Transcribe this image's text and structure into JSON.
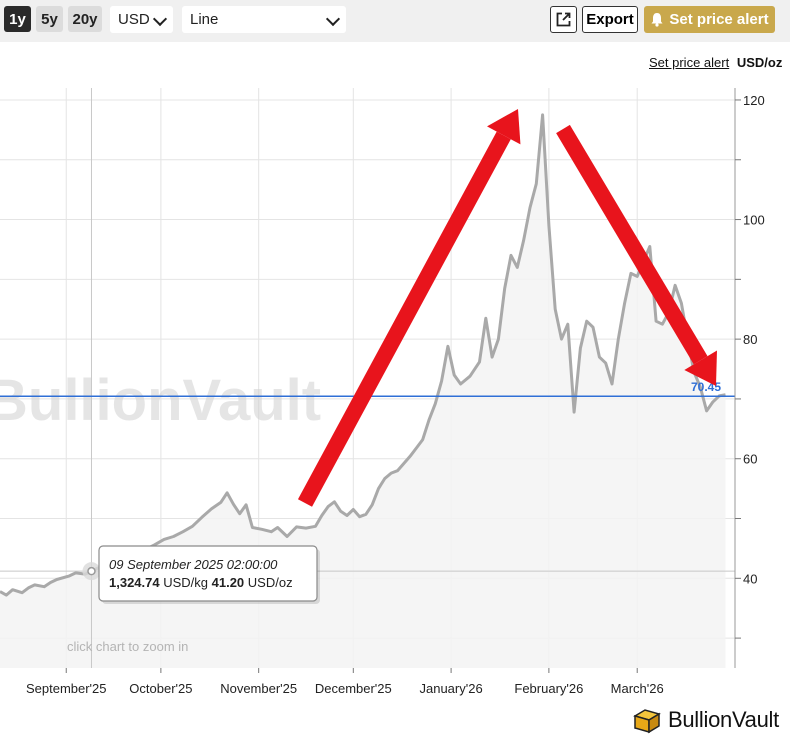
{
  "toolbar": {
    "ranges": [
      {
        "label": "1y",
        "active": true
      },
      {
        "label": "5y",
        "active": false
      },
      {
        "label": "20y",
        "active": false
      }
    ],
    "currency": "USD",
    "chart_style": "Line",
    "export_label": "Export",
    "alert_label": "Set price alert"
  },
  "header": {
    "set_price_alert": "Set price alert",
    "unit": "USD/oz"
  },
  "watermark": "BullionVault",
  "zoom_hint": "click chart to zoom in",
  "current_price_label": "70.45",
  "tooltip": {
    "date": "09 September 2025 02:00:00",
    "kg_value": "1,324.74",
    "kg_unit": "USD/kg",
    "oz_value": "41.20",
    "oz_unit": "USD/oz"
  },
  "logo_text": "BullionVault",
  "colors": {
    "line": "#a9a9a9",
    "current_line": "#2f6fd6",
    "annotation_arrows": "#e8141c",
    "alert_button": "#c9a84c"
  },
  "chart_data": {
    "type": "line",
    "title": "",
    "ylabel": "USD/oz",
    "ylim": [
      25,
      122
    ],
    "yticks": [
      40,
      60,
      80,
      100,
      120
    ],
    "x_range": [
      "2025-08-11",
      "2026-04-01"
    ],
    "xticks": [
      {
        "label": "September'25",
        "date": "2025-09-01"
      },
      {
        "label": "October'25",
        "date": "2025-10-01"
      },
      {
        "label": "November'25",
        "date": "2025-11-01"
      },
      {
        "label": "December'25",
        "date": "2025-12-01"
      },
      {
        "label": "January'26",
        "date": "2026-01-01"
      },
      {
        "label": "February'26",
        "date": "2026-02-01"
      },
      {
        "label": "March'26",
        "date": "2026-03-01"
      }
    ],
    "current_price": 70.45,
    "crosshair_date": "2025-09-09",
    "grid": true,
    "series": [
      {
        "points": [
          [
            "2025-08-11",
            37.8
          ],
          [
            "2025-08-13",
            37.2
          ],
          [
            "2025-08-15",
            38.1
          ],
          [
            "2025-08-18",
            37.6
          ],
          [
            "2025-08-20",
            38.4
          ],
          [
            "2025-08-22",
            38.9
          ],
          [
            "2025-08-25",
            38.6
          ],
          [
            "2025-08-27",
            39.3
          ],
          [
            "2025-08-29",
            39.8
          ],
          [
            "2025-09-02",
            40.4
          ],
          [
            "2025-09-04",
            40.9
          ],
          [
            "2025-09-07",
            40.7
          ],
          [
            "2025-09-09",
            41.2
          ],
          [
            "2025-09-11",
            41.7
          ],
          [
            "2025-09-14",
            42.0
          ],
          [
            "2025-09-17",
            42.6
          ],
          [
            "2025-09-20",
            43.2
          ],
          [
            "2025-09-23",
            44.0
          ],
          [
            "2025-09-26",
            44.8
          ],
          [
            "2025-09-29",
            45.6
          ],
          [
            "2025-10-02",
            46.5
          ],
          [
            "2025-10-05",
            47.0
          ],
          [
            "2025-10-08",
            47.8
          ],
          [
            "2025-10-11",
            48.7
          ],
          [
            "2025-10-14",
            50.2
          ],
          [
            "2025-10-17",
            51.6
          ],
          [
            "2025-10-20",
            52.7
          ],
          [
            "2025-10-22",
            54.3
          ],
          [
            "2025-10-24",
            52.4
          ],
          [
            "2025-10-26",
            50.8
          ],
          [
            "2025-10-28",
            52.3
          ],
          [
            "2025-10-30",
            48.5
          ],
          [
            "2025-11-02",
            48.2
          ],
          [
            "2025-11-05",
            47.8
          ],
          [
            "2025-11-07",
            48.5
          ],
          [
            "2025-11-10",
            47.0
          ],
          [
            "2025-11-13",
            48.6
          ],
          [
            "2025-11-16",
            48.4
          ],
          [
            "2025-11-19",
            48.7
          ],
          [
            "2025-11-21",
            50.5
          ],
          [
            "2025-11-23",
            52.0
          ],
          [
            "2025-11-25",
            52.8
          ],
          [
            "2025-11-27",
            51.2
          ],
          [
            "2025-11-29",
            50.5
          ],
          [
            "2025-12-01",
            51.5
          ],
          [
            "2025-12-03",
            50.3
          ],
          [
            "2025-12-05",
            50.7
          ],
          [
            "2025-12-07",
            52.3
          ],
          [
            "2025-12-09",
            55.0
          ],
          [
            "2025-12-11",
            56.7
          ],
          [
            "2025-12-13",
            57.6
          ],
          [
            "2025-12-15",
            58.0
          ],
          [
            "2025-12-17",
            59.2
          ],
          [
            "2025-12-19",
            60.4
          ],
          [
            "2025-12-21",
            61.8
          ],
          [
            "2025-12-23",
            63.2
          ],
          [
            "2025-12-25",
            66.5
          ],
          [
            "2025-12-27",
            69.2
          ],
          [
            "2025-12-29",
            73.0
          ],
          [
            "2025-12-31",
            78.8
          ],
          [
            "2026-01-02",
            74.0
          ],
          [
            "2026-01-04",
            72.5
          ],
          [
            "2026-01-07",
            73.8
          ],
          [
            "2026-01-10",
            76.2
          ],
          [
            "2026-01-12",
            83.5
          ],
          [
            "2026-01-14",
            77.0
          ],
          [
            "2026-01-16",
            80.0
          ],
          [
            "2026-01-18",
            88.5
          ],
          [
            "2026-01-20",
            94.0
          ],
          [
            "2026-01-22",
            92.0
          ],
          [
            "2026-01-24",
            96.5
          ],
          [
            "2026-01-26",
            102.0
          ],
          [
            "2026-01-28",
            106.0
          ],
          [
            "2026-01-30",
            117.5
          ],
          [
            "2026-02-01",
            99.0
          ],
          [
            "2026-02-03",
            85.0
          ],
          [
            "2026-02-05",
            80.0
          ],
          [
            "2026-02-07",
            82.5
          ],
          [
            "2026-02-09",
            67.8
          ],
          [
            "2026-02-11",
            78.5
          ],
          [
            "2026-02-13",
            83.0
          ],
          [
            "2026-02-15",
            82.0
          ],
          [
            "2026-02-17",
            77.0
          ],
          [
            "2026-02-19",
            76.0
          ],
          [
            "2026-02-21",
            72.5
          ],
          [
            "2026-02-23",
            80.0
          ],
          [
            "2026-02-25",
            86.0
          ],
          [
            "2026-02-27",
            91.0
          ],
          [
            "2026-03-01",
            90.5
          ],
          [
            "2026-03-03",
            93.0
          ],
          [
            "2026-03-05",
            95.5
          ],
          [
            "2026-03-07",
            83.0
          ],
          [
            "2026-03-09",
            82.5
          ],
          [
            "2026-03-11",
            84.5
          ],
          [
            "2026-03-13",
            89.0
          ],
          [
            "2026-03-15",
            86.0
          ],
          [
            "2026-03-17",
            80.0
          ],
          [
            "2026-03-19",
            74.5
          ],
          [
            "2026-03-21",
            72.0
          ],
          [
            "2026-03-23",
            68.0
          ],
          [
            "2026-03-25",
            69.5
          ],
          [
            "2026-03-27",
            70.5
          ],
          [
            "2026-03-29",
            70.7
          ]
        ]
      }
    ]
  }
}
